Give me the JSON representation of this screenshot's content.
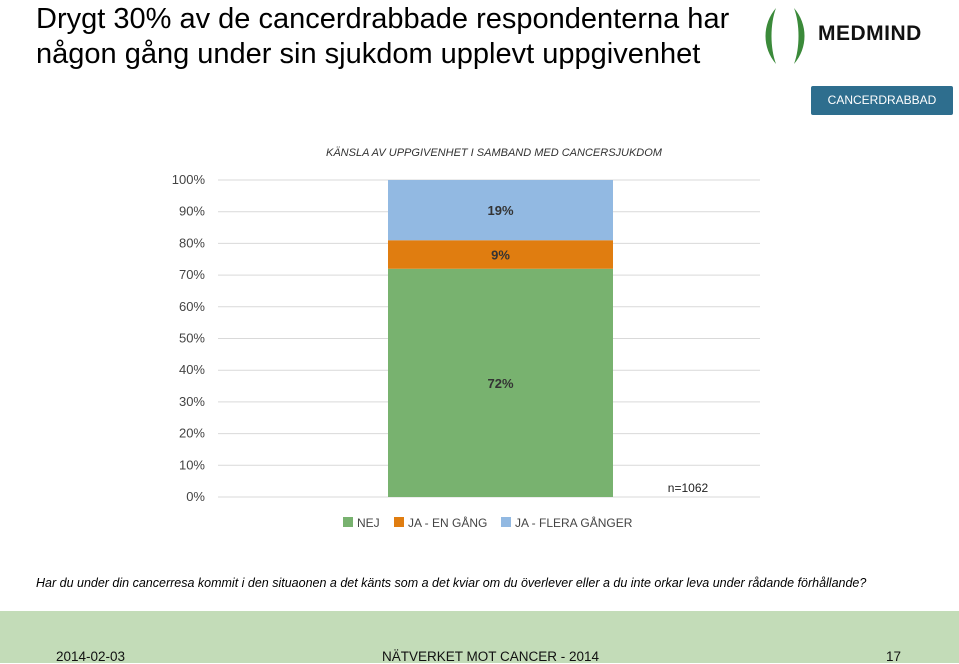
{
  "slide": {
    "title_line1": "Drygt 30% av de cancerdrabbade respondenterna har",
    "title_line2": "någon gång under sin sjukdom upplevt uppgivenhet",
    "logo": "MEDMIND",
    "badge": "CANCERDRABBAD",
    "question": "Har du under din cancerresa kommit i den situaonen a det känts som a det kviar om du överlever eller a du inte orkar leva under rådande förhållande?",
    "footer_date": "2014-02-03",
    "footer_center": "NÄTVERKET MOT CANCER - 2014",
    "footer_page": "17"
  },
  "colors": {
    "nej": "#78b26f",
    "ja_en_gang": "#e07d10",
    "ja_flera_ganger": "#92b9e2",
    "badge": "#2e6e8e",
    "footer": "#c3dcb8"
  },
  "chart_data": {
    "type": "bar",
    "stacked": true,
    "title": "KÄNSLA AV UPPGIVENHET I SAMBAND MED CANCERSJUKDOM",
    "categories": [
      ""
    ],
    "series": [
      {
        "name": "NEJ",
        "values": [
          72
        ],
        "label": "72%"
      },
      {
        "name": "JA - EN GÅNG",
        "values": [
          9
        ],
        "label": "9%"
      },
      {
        "name": "JA - FLERA GÅNGER",
        "values": [
          19
        ],
        "label": "19%"
      }
    ],
    "ylim": [
      0,
      100
    ],
    "yticks": [
      "0%",
      "10%",
      "20%",
      "30%",
      "40%",
      "50%",
      "60%",
      "70%",
      "80%",
      "90%",
      "100%"
    ],
    "annotation": "n=1062",
    "legend_position": "bottom"
  }
}
